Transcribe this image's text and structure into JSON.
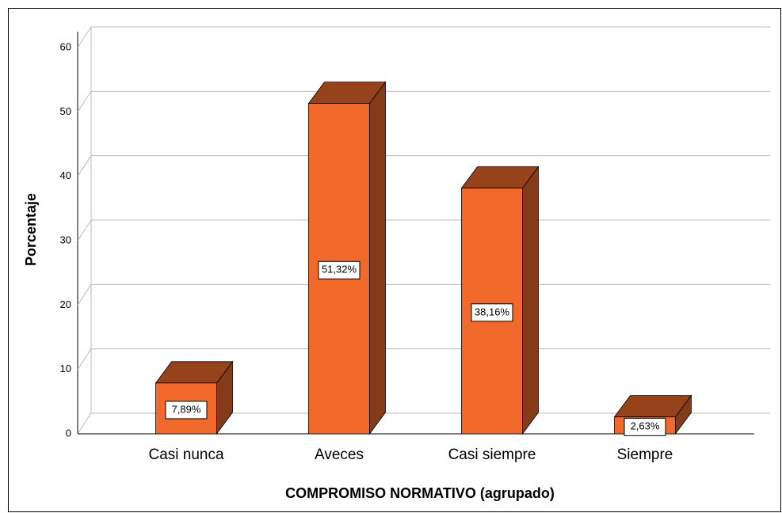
{
  "chart_data": {
    "type": "bar3d",
    "x_label": "COMPROMISO NORMATIVO (agrupado)",
    "y_label": "Porcentaje",
    "categories": [
      "Casi nunca",
      "Aveces",
      "Casi siempre",
      "Siempre"
    ],
    "values": [
      7.89,
      51.32,
      38.16,
      2.63
    ],
    "value_labels": [
      "7,89%",
      "51,32%",
      "38,16%",
      "2,63%"
    ],
    "color": "#f26a2b",
    "ylim": [
      0,
      60
    ],
    "yticks": [
      0,
      10,
      20,
      30,
      40,
      50,
      60
    ],
    "grid": true
  }
}
